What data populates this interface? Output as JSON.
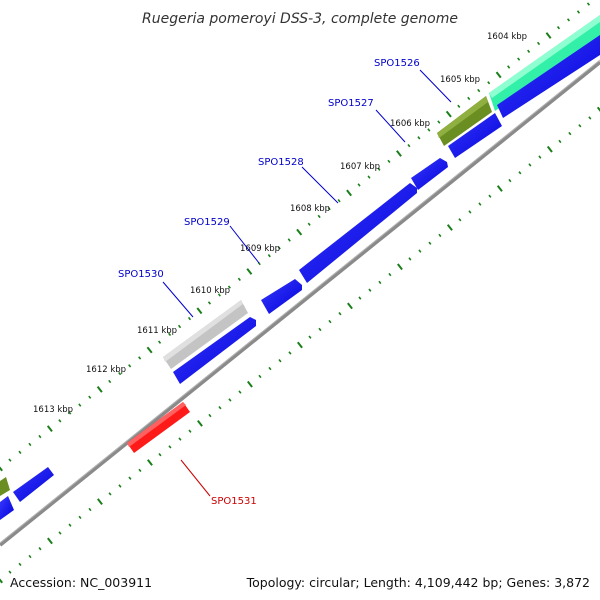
{
  "title": "Ruegeria pomeroyi DSS-3, complete genome",
  "footer": {
    "accession": "Accession: NC_003911",
    "summary": "Topology: circular; Length: 4,109,442 bp; Genes: 3,872"
  },
  "tick_labels": [
    "1604 kbp",
    "1605 kbp",
    "1606 kbp",
    "1607 kbp",
    "1608 kbp",
    "1609 kbp",
    "1610 kbp",
    "1611 kbp",
    "1612 kbp",
    "1613 kbp"
  ],
  "gene_labels": [
    {
      "text": "SPO1526",
      "color": "#0000cc"
    },
    {
      "text": "SPO1527",
      "color": "#0000cc"
    },
    {
      "text": "SPO1528",
      "color": "#0000cc"
    },
    {
      "text": "SPO1529",
      "color": "#0000cc"
    },
    {
      "text": "SPO1530",
      "color": "#0000cc"
    },
    {
      "text": "SPO1531",
      "color": "#cc0000"
    }
  ],
  "colors": {
    "forward_cds": "#0000ff",
    "reverse_cds_highlight": "#ff0000",
    "trna": "#00ee99",
    "olive_feature": "#6b8e23",
    "grey_feature": "#c8c8c8",
    "backbone": "#808080",
    "ticks": "#1a7f1a"
  }
}
